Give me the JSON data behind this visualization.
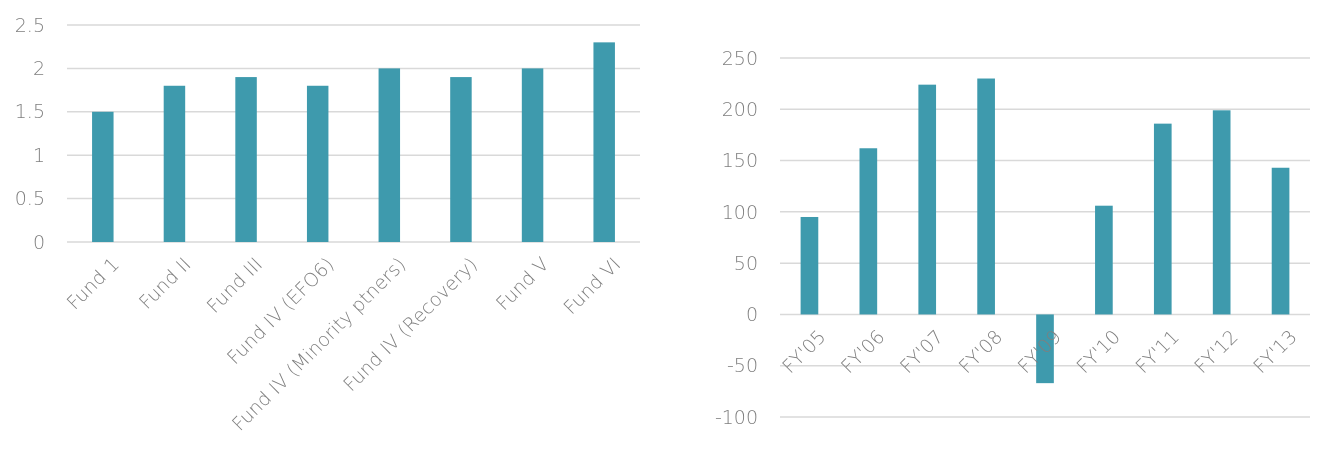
{
  "chart_data": [
    {
      "type": "bar",
      "categories": [
        "Fund 1",
        "Fund II",
        "Fund III",
        "Fund IV (EFO6)",
        "Fund IV (Minority ptners)",
        "Fund IV (Recovery)",
        "Fund V",
        "Fund VI"
      ],
      "values": [
        1.5,
        1.8,
        1.9,
        1.8,
        2.0,
        1.9,
        2.0,
        2.3
      ],
      "color": "#3e9aad",
      "ylim": [
        0,
        2.5
      ],
      "yticks": [
        0,
        {
          "value": 0.5,
          "label": "0.5"
        },
        1,
        {
          "value": 1.5,
          "label": "1.5"
        },
        2,
        {
          "value": 2.5,
          "label": "2.5"
        }
      ],
      "grid": "y"
    },
    {
      "type": "bar",
      "categories": [
        "FY'05",
        "FY'06",
        "FY'07",
        "FY'08",
        "FY'09",
        "FY'10",
        "FY'11",
        "FY'12",
        "FY'13"
      ],
      "values": [
        95,
        162,
        224,
        230,
        -67,
        106,
        186,
        199,
        143
      ],
      "color": "#3e9aad",
      "ylim": [
        -100,
        250
      ],
      "yticks": [
        -100,
        -50,
        0,
        50,
        100,
        150,
        200,
        250
      ],
      "grid": "y"
    }
  ]
}
